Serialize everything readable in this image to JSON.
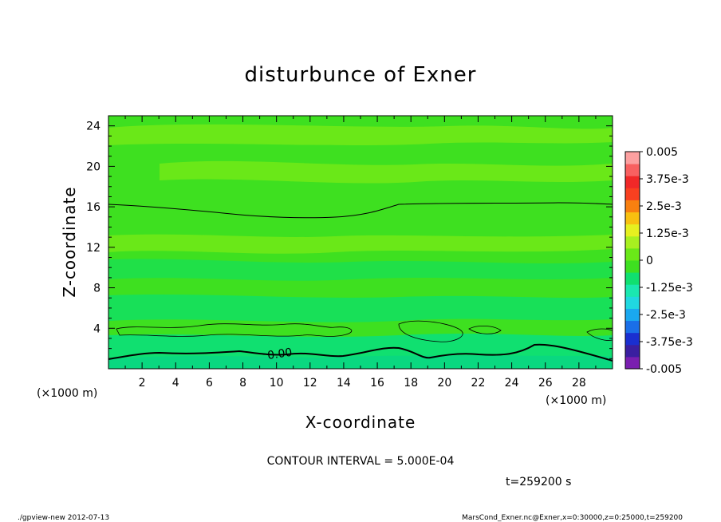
{
  "chart_data": {
    "type": "heatmap",
    "title": "disturbunce of Exner",
    "xlabel": "X-coordinate",
    "ylabel": "Z-coordinate",
    "x_unit_left": "(×1000 m)",
    "x_unit_right": "(×1000 m)",
    "xlim": [
      0,
      30
    ],
    "ylim": [
      0,
      25
    ],
    "x_ticks": [
      "2",
      "4",
      "6",
      "8",
      "10",
      "12",
      "14",
      "16",
      "18",
      "20",
      "22",
      "24",
      "26",
      "28"
    ],
    "y_ticks": [
      "4",
      "8",
      "12",
      "16",
      "20",
      "24"
    ],
    "colorbar": {
      "labels": [
        "0.005",
        "3.75e-3",
        "2.5e-3",
        "1.25e-3",
        "0",
        "-1.25e-3",
        "-2.5e-3",
        "-3.75e-3",
        "-0.005"
      ],
      "min": -0.005,
      "max": 0.005,
      "colors": [
        "#7a1fb0",
        "#3a1fa0",
        "#1a2fd0",
        "#1a6fe8",
        "#1aa8f0",
        "#20d8e0",
        "#1ae8b0",
        "#10e070",
        "#3ee020",
        "#6ae818",
        "#a8f020",
        "#e6f020",
        "#f8c010",
        "#f88010",
        "#f84020",
        "#f02828",
        "#f86060",
        "#fca0a0"
      ]
    },
    "contours": [
      {
        "label": "",
        "z_approx_km": 15.5,
        "style": "solid"
      },
      {
        "label": "0.00",
        "z_approx_km": 1.6,
        "style": "solid-bold"
      },
      {
        "label": "",
        "z_approx_km": 4.0,
        "style": "solid-thin"
      }
    ],
    "contour_interval_text": "CONTOUR INTERVAL = 5.000E-04",
    "time_text": "t=259200 s"
  },
  "footer": {
    "left": "./gpview-new   2012-07-13",
    "right": "MarsCond_Exner.nc@Exner,x=0:30000,z=0:25000,t=259200"
  },
  "colors": {
    "field_base": "#3ee020",
    "field_light": "#6ae818",
    "field_dark": "#10e070"
  }
}
